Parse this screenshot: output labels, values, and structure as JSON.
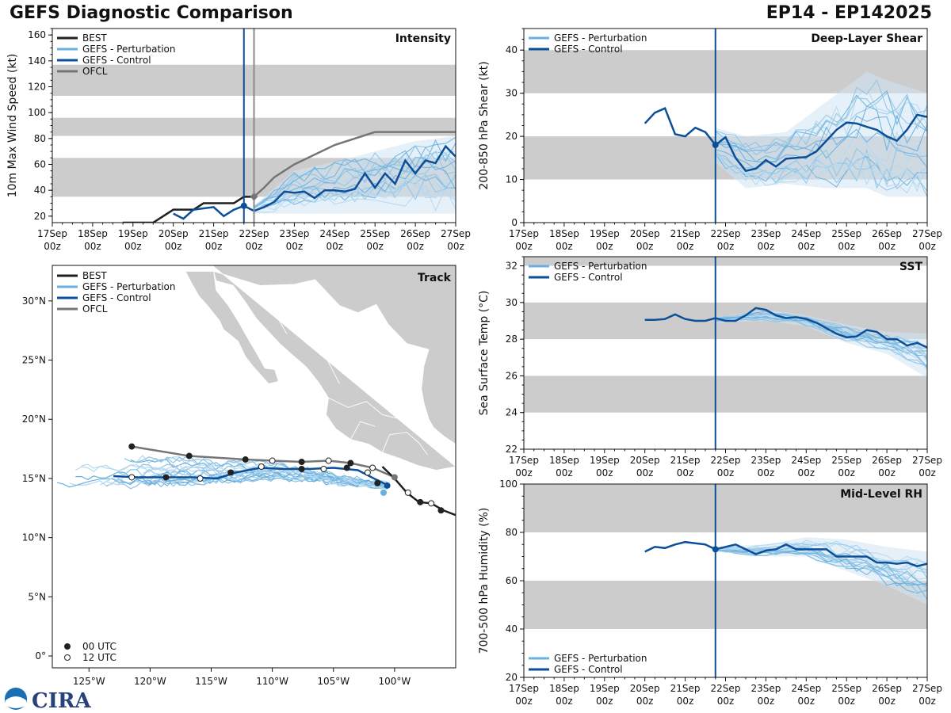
{
  "header": {
    "title": "GEFS Diagnostic Comparison",
    "storm_id": "EP14 - EP142025"
  },
  "logo_text": "CIRA",
  "colors": {
    "best": "#1f1f1f",
    "perturbation": "#6ab0de",
    "control": "#0c4f99",
    "ofcl": "#757575",
    "band": "#cccccc",
    "land": "#cccccc",
    "init_line": "#0c4f99",
    "ofcl_line": "#8a8a8a"
  },
  "time_axis": {
    "dates": [
      "17Sep",
      "18Sep",
      "19Sep",
      "20Sep",
      "21Sep",
      "22Sep",
      "23Sep",
      "24Sep",
      "25Sep",
      "26Sep",
      "27Sep"
    ],
    "hour_label": "00z",
    "init_day": 4.75,
    "ofcl_day": 5.0
  },
  "chart_data": [
    {
      "id": "intensity",
      "type": "line",
      "title": "Intensity",
      "ylabel": "10m Max Wind Speed (kt)",
      "ylim": [
        15,
        165
      ],
      "yticks": [
        20,
        40,
        60,
        80,
        100,
        120,
        140,
        160
      ],
      "bands": [
        [
          35,
          65
        ],
        [
          82,
          96
        ],
        [
          113,
          137
        ]
      ],
      "legend": [
        "BEST",
        "GEFS - Perturbation",
        "GEFS - Control",
        "OFCL"
      ],
      "best": {
        "x": [
          1.75,
          2.5,
          3.0,
          3.5,
          3.75,
          4.0,
          4.5,
          4.75,
          5.0
        ],
        "y": [
          15,
          15,
          25,
          25,
          30,
          30,
          30,
          35,
          35
        ]
      },
      "ofcl": {
        "x": [
          5.0,
          5.25,
          5.5,
          6.0,
          7.0,
          8.0,
          9.0,
          10.0
        ],
        "y": [
          35,
          42,
          50,
          60,
          75,
          85,
          85,
          85
        ]
      },
      "control": {
        "x": [
          3.0,
          3.25,
          3.5,
          3.75,
          4.0,
          4.25,
          4.5,
          4.75,
          5.0,
          5.25,
          5.5,
          5.75,
          6.0,
          6.25,
          6.5,
          6.75,
          7.0,
          7.25,
          7.5,
          7.75,
          8.0,
          8.25,
          8.5,
          8.75,
          9.0,
          9.25,
          9.5,
          9.75,
          10.0
        ],
        "y": [
          22,
          18,
          25,
          26,
          27,
          20,
          25,
          28,
          24,
          27,
          31,
          39,
          38,
          39,
          34,
          40,
          40,
          39,
          41,
          53,
          42,
          53,
          45,
          63,
          53,
          63,
          61,
          74,
          66
        ]
      },
      "pert_init": {
        "x": 4.75,
        "y": 28
      },
      "best_marker": {
        "x": 5.0,
        "y": 35
      },
      "spread": {
        "x": [
          5.0,
          6.0,
          7.0,
          8.0,
          9.0,
          10.0
        ],
        "min": [
          22,
          22,
          22,
          22,
          22,
          22
        ],
        "max": [
          28,
          55,
          62,
          70,
          78,
          82
        ]
      }
    },
    {
      "id": "shear",
      "type": "line",
      "title": "Deep-Layer Shear",
      "ylabel": "200-850 hPa Shear (kt)",
      "ylim": [
        0,
        45
      ],
      "yticks": [
        0,
        10,
        20,
        30,
        40
      ],
      "bands": [
        [
          10,
          20
        ],
        [
          30,
          40
        ]
      ],
      "legend": [
        "GEFS - Perturbation",
        "GEFS - Control"
      ],
      "control": {
        "x": [
          3.0,
          3.25,
          3.5,
          3.75,
          4.0,
          4.25,
          4.5,
          4.75,
          5.0,
          5.25,
          5.5,
          5.75,
          6.0,
          6.25,
          6.5,
          6.75,
          7.0,
          7.25,
          7.5,
          7.75,
          8.0,
          8.25,
          8.5,
          8.75,
          9.0,
          9.25,
          9.5,
          9.75,
          10.0
        ],
        "y": [
          23,
          25.5,
          26.5,
          20.5,
          20,
          22,
          21,
          18,
          19.8,
          15,
          12,
          12.5,
          14.5,
          13,
          14.8,
          15,
          15.2,
          16.5,
          19,
          21.5,
          23.2,
          23,
          22.2,
          21.5,
          20,
          19,
          21.5,
          25,
          24.5
        ]
      },
      "marker": {
        "x": 4.75,
        "y": 18
      },
      "spread": {
        "x": [
          4.75,
          5.5,
          6.5,
          7.5,
          8.5,
          9.0,
          10.0
        ],
        "min": [
          14,
          8,
          9,
          8,
          8,
          6,
          6
        ],
        "max": [
          22,
          20,
          21,
          28,
          35,
          33,
          30
        ]
      }
    },
    {
      "id": "sst",
      "type": "line",
      "title": "SST",
      "ylabel": "Sea Surface Temp (°C)",
      "ylim": [
        22,
        32.5
      ],
      "yticks": [
        22,
        24,
        26,
        28,
        30,
        32
      ],
      "bands": [
        [
          24,
          26
        ],
        [
          28,
          30
        ],
        [
          32,
          32.5
        ]
      ],
      "legend": [
        "GEFS - Perturbation",
        "GEFS - Control"
      ],
      "control": {
        "x": [
          3.0,
          3.25,
          3.5,
          3.75,
          4.0,
          4.25,
          4.5,
          4.75,
          5.0,
          5.25,
          5.5,
          5.75,
          6.0,
          6.25,
          6.5,
          6.75,
          7.0,
          7.25,
          7.5,
          7.75,
          8.0,
          8.25,
          8.5,
          8.75,
          9.0,
          9.25,
          9.5,
          9.75,
          10.0
        ],
        "y": [
          29.05,
          29.05,
          29.1,
          29.35,
          29.1,
          29.0,
          29.0,
          29.15,
          29.0,
          29.0,
          29.3,
          29.7,
          29.6,
          29.3,
          29.15,
          29.2,
          29.1,
          28.9,
          28.6,
          28.3,
          28.1,
          28.15,
          28.5,
          28.4,
          28.0,
          28.0,
          27.65,
          27.8,
          27.55
        ]
      },
      "spread": {
        "x": [
          4.75,
          6.0,
          7.0,
          8.0,
          9.0,
          10.0
        ],
        "min": [
          28.9,
          29.0,
          28.7,
          27.8,
          27.2,
          25.9
        ],
        "max": [
          29.2,
          29.6,
          29.3,
          28.8,
          28.4,
          28.3
        ]
      }
    },
    {
      "id": "rh",
      "type": "line",
      "title": "Mid-Level RH",
      "ylabel": "700-500 hPa Humidity (%)",
      "ylim": [
        20,
        100
      ],
      "yticks": [
        20,
        40,
        60,
        80,
        100
      ],
      "bands": [
        [
          40,
          60
        ],
        [
          80,
          100
        ]
      ],
      "legend": [
        "GEFS - Perturbation",
        "GEFS - Control"
      ],
      "control": {
        "x": [
          3.0,
          3.25,
          3.5,
          3.75,
          4.0,
          4.25,
          4.5,
          4.75,
          5.0,
          5.25,
          5.5,
          5.75,
          6.0,
          6.25,
          6.5,
          6.75,
          7.0,
          7.25,
          7.5,
          7.75,
          8.0,
          8.25,
          8.5,
          8.75,
          9.0,
          9.25,
          9.5,
          9.75,
          10.0
        ],
        "y": [
          72,
          74,
          73.5,
          75,
          76,
          75.5,
          75,
          73,
          74,
          75,
          73,
          71,
          72.5,
          73,
          75,
          73,
          73,
          73,
          73,
          70,
          70,
          70,
          70,
          67.5,
          67.5,
          67,
          67.5,
          66,
          67
        ]
      },
      "marker": {
        "x": 4.75,
        "y": 73
      },
      "spread": {
        "x": [
          4.75,
          6.0,
          7.0,
          8.0,
          9.0,
          10.0
        ],
        "min": [
          72,
          70,
          70,
          64,
          58,
          50
        ],
        "max": [
          74,
          75,
          78,
          77,
          74,
          72
        ]
      }
    },
    {
      "id": "track",
      "type": "map",
      "title": "Track",
      "legend": [
        "BEST",
        "GEFS - Perturbation",
        "GEFS - Control",
        "OFCL"
      ],
      "legend_markers": [
        "00 UTC",
        "12 UTC"
      ],
      "lon_range": [
        -128,
        -95
      ],
      "lat_range": [
        -1,
        33
      ],
      "lon_ticks": [
        -125,
        -120,
        -115,
        -110,
        -105,
        -100
      ],
      "lon_tick_labels": [
        "125°W",
        "120°W",
        "115°W",
        "110°W",
        "105°W",
        "100°W"
      ],
      "lat_ticks": [
        0,
        5,
        10,
        15,
        20,
        25,
        30
      ],
      "lat_tick_labels": [
        "0°",
        "5°N",
        "10°N",
        "15°N",
        "20°N",
        "25°N",
        "30°N"
      ],
      "best": {
        "lon": [
          -95,
          -96,
          -97,
          -98,
          -99,
          -100,
          -101
        ],
        "lat": [
          11.9,
          12.3,
          12.9,
          13.0,
          13.8,
          15.0,
          16.0
        ]
      },
      "best_points": [
        {
          "lon": -96.2,
          "lat": 12.3,
          "utc": "00"
        },
        {
          "lon": -97.0,
          "lat": 12.9,
          "utc": "12"
        },
        {
          "lon": -97.9,
          "lat": 13.0,
          "utc": "00"
        },
        {
          "lon": -98.9,
          "lat": 13.8,
          "utc": "12"
        }
      ],
      "ofcl": {
        "lon": [
          -100.0,
          -101.8,
          -103.6,
          -105.4,
          -107.6,
          -110.0,
          -112.2,
          -116.8,
          -121.5
        ],
        "lat": [
          15.1,
          15.9,
          16.3,
          16.5,
          16.4,
          16.5,
          16.6,
          16.9,
          17.7
        ],
        "utc": [
          "00",
          "12",
          "00",
          "12",
          "00",
          "12",
          "00",
          "00",
          "00"
        ]
      },
      "control": {
        "lon": [
          -100.5,
          -101.5,
          -103.0,
          -105.0,
          -107.0,
          -109.0,
          -111.0,
          -113.0,
          -114.5,
          -116.5,
          -118.5,
          -121.0,
          -123.0
        ],
        "lat": [
          14.4,
          14.9,
          15.7,
          15.9,
          15.8,
          15.8,
          15.9,
          15.5,
          15.0,
          15.1,
          15.1,
          15.1,
          15.2
        ],
        "points": [
          {
            "lon": -101.4,
            "lat": 14.6,
            "utc": "00"
          },
          {
            "lon": -102.2,
            "lat": 15.5,
            "utc": "12"
          },
          {
            "lon": -103.9,
            "lat": 15.9,
            "utc": "00"
          },
          {
            "lon": -105.8,
            "lat": 15.8,
            "utc": "12"
          },
          {
            "lon": -107.6,
            "lat": 15.8,
            "utc": "00"
          },
          {
            "lon": -110.9,
            "lat": 16.0,
            "utc": "12"
          },
          {
            "lon": -113.4,
            "lat": 15.5,
            "utc": "00"
          },
          {
            "lon": -115.9,
            "lat": 15.0,
            "utc": "12"
          },
          {
            "lon": -118.7,
            "lat": 15.1,
            "utc": "00"
          },
          {
            "lon": -121.5,
            "lat": 15.1,
            "utc": "12"
          }
        ]
      },
      "init_marker": {
        "lon": -100.6,
        "lat": 14.4
      },
      "pert_marker": {
        "lon": -100.9,
        "lat": 13.8
      }
    }
  ]
}
